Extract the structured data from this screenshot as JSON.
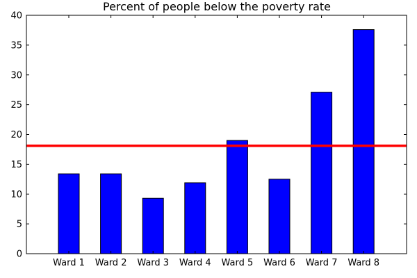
{
  "chart_data": {
    "type": "bar",
    "title": "Percent of people below the poverty rate",
    "xlabel": "",
    "ylabel": "",
    "categories": [
      "Ward 1",
      "Ward 2",
      "Ward 3",
      "Ward 4",
      "Ward 5",
      "Ward 6",
      "Ward 7",
      "Ward 8"
    ],
    "values": [
      13.4,
      13.4,
      9.3,
      11.9,
      19.0,
      12.5,
      27.1,
      37.6
    ],
    "ylim": [
      0,
      40
    ],
    "yticks": [
      "0",
      "5",
      "10",
      "15",
      "20",
      "25",
      "30",
      "35",
      "40"
    ],
    "reference_line": {
      "value": 18.1,
      "color": "#ff0000"
    },
    "bar_color": "#0000ff",
    "grid": false
  }
}
